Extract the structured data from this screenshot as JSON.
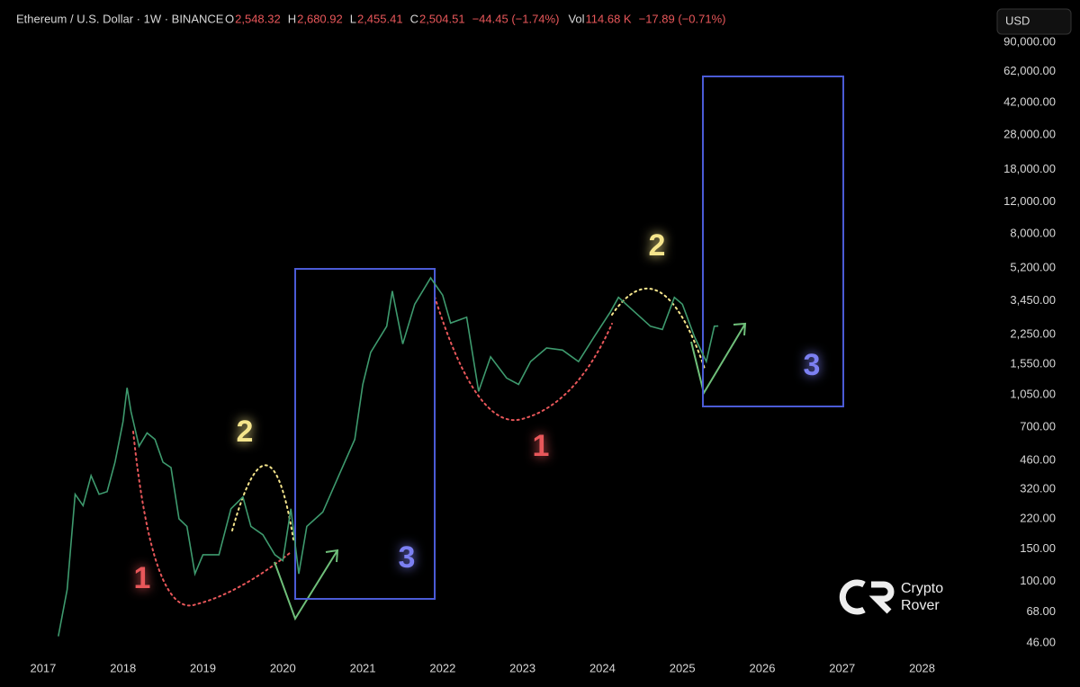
{
  "chart_data": {
    "type": "line",
    "title": "Ethereum / U.S. Dollar · 1W · BINANCE",
    "ohlc": [
      {
        "key": "O",
        "value": "2,548.32"
      },
      {
        "key": "H",
        "value": "2,680.92"
      },
      {
        "key": "L",
        "value": "2,455.41"
      },
      {
        "key": "C",
        "value": "2,504.51"
      }
    ],
    "change": "−44.45 (−1.74%)",
    "volume": {
      "key": "Vol",
      "value": "114.68 K",
      "change": "−17.89 (−0.71%)"
    },
    "currency": "USD",
    "watermark": [
      "Crypto",
      "Rover"
    ],
    "log_scale": true,
    "xlim": [
      2016.46,
      2028.85
    ],
    "xticks": [
      2017,
      2018,
      2019,
      2020,
      2021,
      2022,
      2023,
      2024,
      2025,
      2026,
      2027,
      2028
    ],
    "ylim": [
      38.8,
      136800
    ],
    "yticks": [
      {
        "value": 46,
        "label": "46.00"
      },
      {
        "value": 68,
        "label": "68.00"
      },
      {
        "value": 100,
        "label": "100.00"
      },
      {
        "value": 150,
        "label": "150.00"
      },
      {
        "value": 220,
        "label": "220.00"
      },
      {
        "value": 320,
        "label": "320.00"
      },
      {
        "value": 460,
        "label": "460.00"
      },
      {
        "value": 700,
        "label": "700.00"
      },
      {
        "value": 1050,
        "label": "1,050.00"
      },
      {
        "value": 1550,
        "label": "1,550.00"
      },
      {
        "value": 2250,
        "label": "2,250.00"
      },
      {
        "value": 3450,
        "label": "3,450.00"
      },
      {
        "value": 5200,
        "label": "5,200.00"
      },
      {
        "value": 8000,
        "label": "8,000.00"
      },
      {
        "value": 12000,
        "label": "12,000.00"
      },
      {
        "value": 18000,
        "label": "18,000.00"
      },
      {
        "value": 28000,
        "label": "28,000.00"
      },
      {
        "value": 42000,
        "label": "42,000.00"
      },
      {
        "value": 62000,
        "label": "62,000.00"
      },
      {
        "value": 90000,
        "label": "90,000.00"
      }
    ],
    "x": [
      2017.19,
      2017.3,
      2017.4,
      2017.5,
      2017.6,
      2017.7,
      2017.8,
      2017.9,
      2018.0,
      2018.05,
      2018.1,
      2018.2,
      2018.3,
      2018.4,
      2018.5,
      2018.6,
      2018.7,
      2018.8,
      2018.9,
      2019.0,
      2019.2,
      2019.35,
      2019.5,
      2019.6,
      2019.75,
      2019.9,
      2020.0,
      2020.1,
      2020.2,
      2020.3,
      2020.5,
      2020.7,
      2020.9,
      2021.0,
      2021.1,
      2021.3,
      2021.37,
      2021.5,
      2021.65,
      2021.85,
      2022.0,
      2022.1,
      2022.3,
      2022.45,
      2022.6,
      2022.8,
      2022.95,
      2023.1,
      2023.3,
      2023.5,
      2023.7,
      2023.9,
      2024.1,
      2024.2,
      2024.4,
      2024.6,
      2024.75,
      2024.9,
      2025.0,
      2025.15,
      2025.3,
      2025.4,
      2025.45
    ],
    "series": [
      {
        "color": "#3e9a6e",
        "values": [
          50,
          90,
          300,
          260,
          380,
          300,
          310,
          450,
          750,
          1150,
          850,
          550,
          650,
          600,
          450,
          420,
          220,
          200,
          110,
          140,
          140,
          250,
          290,
          200,
          180,
          140,
          130,
          250,
          110,
          200,
          240,
          380,
          600,
          1200,
          1800,
          2500,
          3900,
          2000,
          3300,
          4600,
          3700,
          2600,
          2800,
          1100,
          1700,
          1300,
          1200,
          1600,
          1900,
          1850,
          1600,
          2200,
          3000,
          3600,
          3000,
          2500,
          2400,
          3600,
          3300,
          2200,
          1600,
          2500,
          2505
        ]
      }
    ],
    "annotations": [
      {
        "text": "1",
        "color": "#e8575a"
      },
      {
        "text": "2",
        "color": "#f5e58c"
      },
      {
        "text": "3",
        "color": "#7c80f2"
      },
      {
        "text": "1",
        "color": "#e8575a"
      },
      {
        "text": "2",
        "color": "#f5e58c"
      },
      {
        "text": "3",
        "color": "#7c80f2"
      }
    ]
  }
}
